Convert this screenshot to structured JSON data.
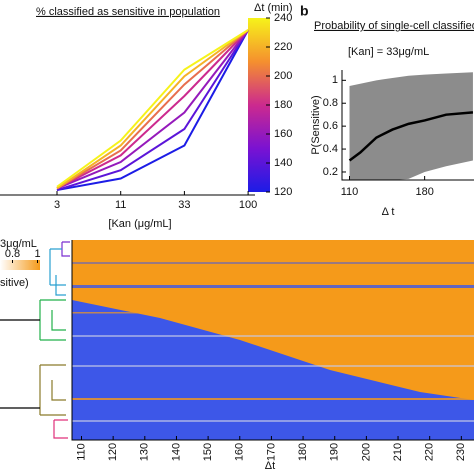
{
  "chart_data": [
    {
      "type": "line",
      "title": "% classified as sensitive in population",
      "xlabel": "[Kan (μg/mL]",
      "categories": [
        "3",
        "11",
        "33",
        "100"
      ],
      "ylim": [
        0,
        1
      ],
      "colormap": [
        "#1c1ce6",
        "#7a12d2",
        "#cc2a8e",
        "#f5902e",
        "#f6f31a"
      ],
      "colorbar": {
        "label": "Δt (min)",
        "lim": [
          120,
          240
        ],
        "ticks": [
          120,
          140,
          160,
          180,
          200,
          220,
          240
        ]
      },
      "series": [
        {
          "dt": 120,
          "values": [
            0.03,
            0.1,
            0.3,
            1
          ]
        },
        {
          "dt": 140,
          "values": [
            0.03,
            0.15,
            0.4,
            1
          ]
        },
        {
          "dt": 160,
          "values": [
            0.04,
            0.2,
            0.5,
            1
          ]
        },
        {
          "dt": 180,
          "values": [
            0.04,
            0.24,
            0.6,
            1
          ]
        },
        {
          "dt": 200,
          "values": [
            0.04,
            0.27,
            0.67,
            1
          ]
        },
        {
          "dt": 220,
          "values": [
            0.04,
            0.3,
            0.72,
            1
          ]
        },
        {
          "dt": 240,
          "values": [
            0.05,
            0.33,
            0.76,
            1
          ]
        }
      ]
    },
    {
      "type": "band",
      "panel": "b",
      "title": "Probability of single-cell classified as",
      "annotation": "[Kan] = 33μg/mL",
      "xlabel": "Δ t",
      "ylabel": "P(Sensitive)",
      "xlim": [
        103,
        226
      ],
      "xticks": [
        110,
        180
      ],
      "ylim": [
        0.13,
        1.09
      ],
      "yticks": [
        0.2,
        0.4,
        0.6,
        0.8,
        1
      ],
      "x": [
        110,
        120,
        135,
        150,
        165,
        180,
        200,
        225
      ],
      "values": [
        0.3,
        0.37,
        0.5,
        0.57,
        0.62,
        0.65,
        0.7,
        0.72
      ],
      "lower": [
        0.13,
        0.13,
        0.13,
        0.13,
        0.14,
        0.2,
        0.25,
        0.3
      ],
      "upper": [
        0.95,
        0.97,
        1.0,
        1.02,
        1.04,
        1.05,
        1.06,
        1.07
      ],
      "line_color": "#000000",
      "band_color": "#8c8c8c"
    },
    {
      "type": "heatmap",
      "annotation": "3μg/mL",
      "legend_label": "sitive)",
      "xlabel": "Δt",
      "xlim": [
        107,
        234
      ],
      "xticks": [
        110,
        120,
        130,
        140,
        150,
        160,
        170,
        180,
        190,
        200,
        210,
        220,
        230
      ],
      "colorbar": {
        "lim": [
          0.7,
          1.02
        ],
        "ticks": [
          0.8,
          1
        ]
      }
    }
  ]
}
